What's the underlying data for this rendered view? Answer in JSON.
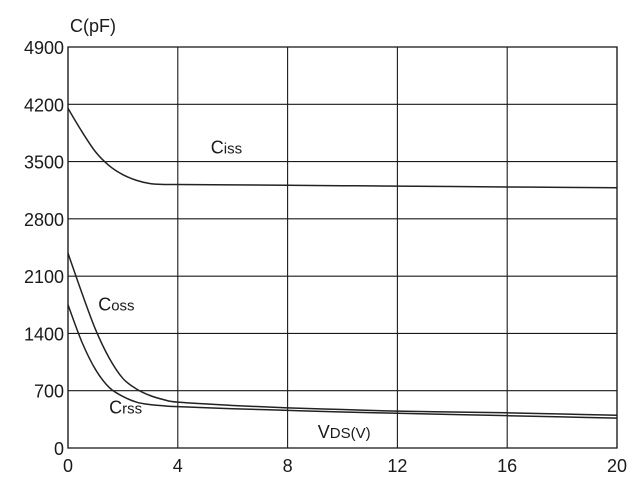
{
  "chart_data": {
    "type": "line",
    "ylabel": "C(pF)",
    "xlabel": "VDS(V)",
    "xlim": [
      0,
      20
    ],
    "ylim": [
      0,
      4900
    ],
    "x_ticks": [
      "0",
      "4",
      "8",
      "12",
      "16",
      "20"
    ],
    "y_ticks": [
      "0",
      "700",
      "1400",
      "2100",
      "2800",
      "3500",
      "4200",
      "4900"
    ],
    "grid": true,
    "series": [
      {
        "name": "Ciss",
        "x": [
          0,
          0.5,
          1,
          1.5,
          2,
          2.5,
          3,
          3.5,
          4,
          6,
          8,
          10,
          12,
          14,
          16,
          18,
          20
        ],
        "y": [
          4150,
          3870,
          3620,
          3450,
          3340,
          3270,
          3230,
          3220,
          3220,
          3215,
          3210,
          3205,
          3200,
          3195,
          3190,
          3185,
          3180
        ]
      },
      {
        "name": "Coss",
        "x": [
          0,
          0.5,
          1,
          1.5,
          2,
          2.5,
          3,
          3.5,
          4,
          6,
          8,
          10,
          12,
          14,
          16,
          18,
          20
        ],
        "y": [
          2380,
          1900,
          1450,
          1100,
          850,
          720,
          640,
          590,
          560,
          520,
          490,
          470,
          450,
          440,
          430,
          415,
          400
        ]
      },
      {
        "name": "Crss",
        "x": [
          0,
          0.5,
          1,
          1.5,
          2,
          2.5,
          3,
          3.5,
          4,
          6,
          8,
          10,
          12,
          14,
          16,
          18,
          20
        ],
        "y": [
          1750,
          1300,
          960,
          740,
          630,
          560,
          530,
          515,
          505,
          480,
          460,
          440,
          425,
          410,
          395,
          380,
          365
        ]
      }
    ],
    "annotations": [
      {
        "text": "Ciss",
        "x": 5.2,
        "y": 3600
      },
      {
        "text": "Coss",
        "x": 1.1,
        "y": 1680
      },
      {
        "text": "Crss",
        "x": 1.5,
        "y": 420
      },
      {
        "text": "VDS(V)",
        "x": 9.1,
        "y": 120
      }
    ]
  }
}
